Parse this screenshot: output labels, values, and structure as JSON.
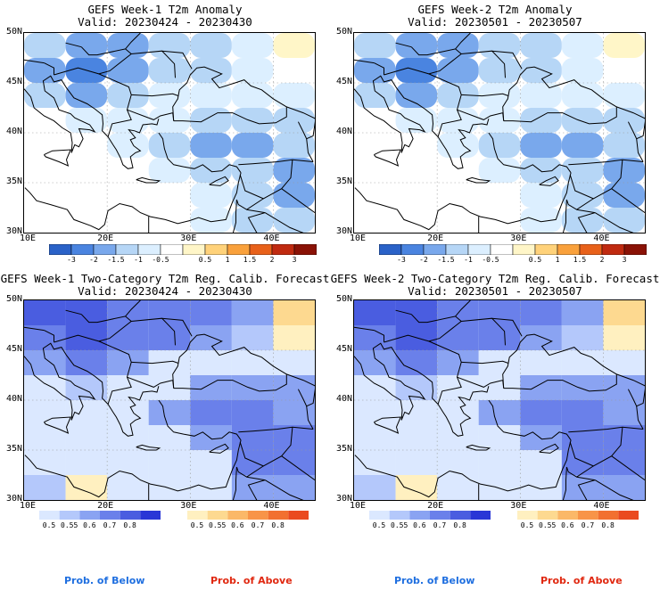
{
  "colors": {
    "anom_scale": [
      "#2a62c8",
      "#4a84e0",
      "#79a8ec",
      "#b6d6f6",
      "#dcefff",
      "#ffffff",
      "#fff6c8",
      "#ffd27a",
      "#f9a13c",
      "#e8611a",
      "#c02a10",
      "#8a1206"
    ],
    "prob_below": [
      "#dbe8ff",
      "#b4c8fb",
      "#8aa3f2",
      "#6a80ea",
      "#4a5de0",
      "#2a36d6"
    ],
    "prob_above": [
      "#fff0c0",
      "#fdd990",
      "#fbb868",
      "#f89448",
      "#f27030",
      "#ea4a20"
    ],
    "prob_below_label": "#1f6fe0",
    "prob_above_label": "#e02810"
  },
  "panels": [
    {
      "id": "week1-anomaly",
      "title": "GEFS Week-1 T2m Anomaly",
      "valid": "Valid: 20230424 - 20230430",
      "kind": "anomaly"
    },
    {
      "id": "week2-anomaly",
      "title": "GEFS Week-2 T2m Anomaly",
      "valid": "Valid: 20230501 - 20230507",
      "kind": "anomaly"
    },
    {
      "id": "week1-prob",
      "title": "GEFS Week-1 Two-Category T2m Reg. Calib. Forecast",
      "valid": "Valid: 20230424 - 20230430",
      "kind": "prob"
    },
    {
      "id": "week2-prob",
      "title": "GEFS Week-2 Two-Category T2m Reg. Calib. Forecast",
      "valid": "Valid: 20230501 - 20230507",
      "kind": "prob"
    }
  ],
  "axes": {
    "lat_labels": [
      "50N",
      "45N",
      "40N",
      "35N",
      "30N"
    ],
    "lon_labels": [
      "10E",
      "20E",
      "30E",
      "40E"
    ]
  },
  "anom_ticks": [
    "-3",
    "-2",
    "-1.5",
    "-1",
    "-0.5",
    "0.5",
    "1",
    "1.5",
    "2",
    "3"
  ],
  "prob_ticks": [
    "0.5",
    "0.55",
    "0.6",
    "0.7",
    "0.8"
  ],
  "legend": {
    "below": "Prob. of Below",
    "above": "Prob. of Above"
  },
  "chart_data": [
    {
      "type": "heatmap",
      "title": "GEFS Week-1 T2m Anomaly",
      "subtitle": "Valid: 20230424 - 20230430",
      "lon_range": [
        10,
        45
      ],
      "lat_range": [
        30,
        50
      ],
      "colorbar_levels": [
        -3,
        -2,
        -1.5,
        -1,
        -0.5,
        0.5,
        1,
        1.5,
        2,
        3
      ],
      "grid_lon": [
        12.5,
        17.5,
        22.5,
        27.5,
        32.5,
        37.5,
        42.5
      ],
      "grid_lat": [
        48.75,
        46.25,
        43.75,
        41.25,
        38.75,
        36.25,
        33.75,
        31.25
      ],
      "values": [
        [
          -1.0,
          -1.5,
          -1.5,
          -1.0,
          -1.0,
          -0.5,
          0.5
        ],
        [
          -1.5,
          -2.0,
          -1.5,
          -1.0,
          -1.0,
          -0.5,
          0
        ],
        [
          -1.0,
          -1.5,
          -1.0,
          -0.5,
          -0.5,
          -0.5,
          -0.5
        ],
        [
          0,
          -0.5,
          -0.5,
          -0.5,
          -1.0,
          -1.0,
          -1.0
        ],
        [
          0,
          0,
          -0.5,
          -1.0,
          -1.5,
          -1.5,
          -1.0
        ],
        [
          0,
          0,
          0,
          -0.5,
          -1.0,
          -1.0,
          -1.5
        ],
        [
          0,
          0,
          0,
          0,
          -0.5,
          -1.0,
          -1.5
        ],
        [
          0,
          0,
          0,
          0,
          -0.5,
          -1.0,
          -1.0
        ]
      ]
    },
    {
      "type": "heatmap",
      "title": "GEFS Week-2 T2m Anomaly",
      "subtitle": "Valid: 20230501 - 20230507",
      "lon_range": [
        10,
        45
      ],
      "lat_range": [
        30,
        50
      ],
      "colorbar_levels": [
        -3,
        -2,
        -1.5,
        -1,
        -0.5,
        0.5,
        1,
        1.5,
        2,
        3
      ],
      "grid_lon": [
        12.5,
        17.5,
        22.5,
        27.5,
        32.5,
        37.5,
        42.5
      ],
      "grid_lat": [
        48.75,
        46.25,
        43.75,
        41.25,
        38.75,
        36.25,
        33.75,
        31.25
      ],
      "values": [
        [
          -1.0,
          -1.5,
          -1.5,
          -1.0,
          -1.0,
          -0.5,
          0.5
        ],
        [
          -1.5,
          -2.0,
          -1.5,
          -1.0,
          -1.0,
          -0.5,
          0
        ],
        [
          -1.0,
          -1.5,
          -1.0,
          -0.5,
          -0.5,
          -0.5,
          -0.5
        ],
        [
          0,
          -0.5,
          -0.5,
          -0.5,
          -1.0,
          -1.0,
          -1.0
        ],
        [
          0,
          0,
          -0.5,
          -1.0,
          -1.5,
          -1.5,
          -1.0
        ],
        [
          0,
          0,
          0,
          -0.5,
          -1.0,
          -1.0,
          -1.5
        ],
        [
          0,
          0,
          0,
          0,
          -0.5,
          -1.0,
          -1.5
        ],
        [
          0,
          0,
          0,
          0,
          -0.5,
          -1.0,
          -1.0
        ]
      ]
    },
    {
      "type": "heatmap",
      "title": "GEFS Week-1 Two-Category T2m Reg. Calib. Forecast",
      "subtitle": "Valid: 20230424 - 20230430",
      "lon_range": [
        10,
        45
      ],
      "lat_range": [
        30,
        50
      ],
      "colorbar_levels": [
        0.5,
        0.55,
        0.6,
        0.7,
        0.8
      ],
      "grid_lon": [
        12.5,
        17.5,
        22.5,
        27.5,
        32.5,
        37.5,
        42.5
      ],
      "grid_lat": [
        48.75,
        46.25,
        43.75,
        41.25,
        38.75,
        36.25,
        33.75,
        31.25
      ],
      "values": [
        [
          -0.8,
          -0.8,
          -0.7,
          -0.7,
          -0.7,
          -0.6,
          0.55
        ],
        [
          -0.7,
          -0.8,
          -0.7,
          -0.7,
          -0.6,
          -0.55,
          0.5
        ],
        [
          -0.6,
          -0.7,
          -0.6,
          -0.5,
          -0.5,
          -0.5,
          -0.5
        ],
        [
          -0.5,
          -0.55,
          -0.5,
          -0.5,
          -0.6,
          -0.6,
          -0.6
        ],
        [
          -0.5,
          -0.5,
          -0.5,
          -0.6,
          -0.7,
          -0.7,
          -0.6
        ],
        [
          -0.5,
          -0.5,
          -0.5,
          -0.5,
          -0.6,
          -0.7,
          -0.7
        ],
        [
          -0.5,
          -0.5,
          -0.5,
          -0.5,
          -0.5,
          -0.7,
          -0.7
        ],
        [
          -0.55,
          0.5,
          -0.5,
          -0.5,
          -0.5,
          -0.6,
          -0.6
        ]
      ]
    },
    {
      "type": "heatmap",
      "title": "GEFS Week-2 Two-Category T2m Reg. Calib. Forecast",
      "subtitle": "Valid: 20230501 - 20230507",
      "lon_range": [
        10,
        45
      ],
      "lat_range": [
        30,
        50
      ],
      "colorbar_levels": [
        0.5,
        0.55,
        0.6,
        0.7,
        0.8
      ],
      "grid_lon": [
        12.5,
        17.5,
        22.5,
        27.5,
        32.5,
        37.5,
        42.5
      ],
      "grid_lat": [
        48.75,
        46.25,
        43.75,
        41.25,
        38.75,
        36.25,
        33.75,
        31.25
      ],
      "values": [
        [
          -0.8,
          -0.8,
          -0.7,
          -0.7,
          -0.7,
          -0.6,
          0.55
        ],
        [
          -0.7,
          -0.8,
          -0.7,
          -0.7,
          -0.6,
          -0.55,
          0.5
        ],
        [
          -0.6,
          -0.7,
          -0.6,
          -0.5,
          -0.5,
          -0.5,
          -0.5
        ],
        [
          -0.5,
          -0.55,
          -0.5,
          -0.5,
          -0.6,
          -0.6,
          -0.6
        ],
        [
          -0.5,
          -0.5,
          -0.5,
          -0.6,
          -0.7,
          -0.7,
          -0.6
        ],
        [
          -0.5,
          -0.5,
          -0.5,
          -0.5,
          -0.6,
          -0.7,
          -0.7
        ],
        [
          -0.5,
          -0.5,
          -0.5,
          -0.5,
          -0.5,
          -0.7,
          -0.7
        ],
        [
          -0.55,
          0.5,
          -0.5,
          -0.5,
          -0.5,
          -0.6,
          -0.6
        ]
      ]
    }
  ]
}
